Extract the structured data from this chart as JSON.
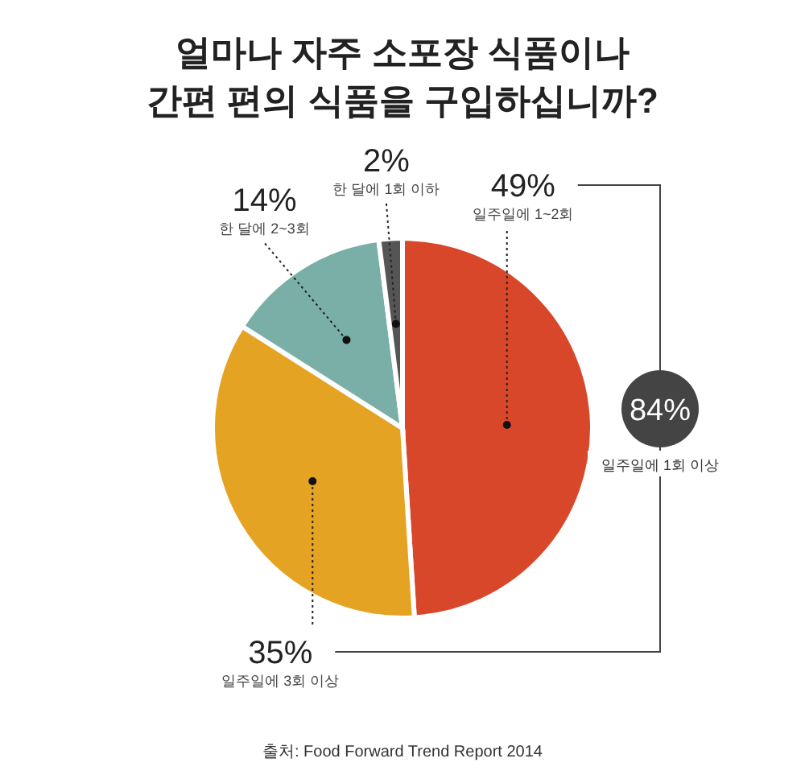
{
  "chart_data": {
    "type": "pie",
    "title": "얼마나 자주 소포장 식품이나\n간편 편의 식품을 구입하십니까?",
    "categories": [
      "일주일에 1~2회",
      "일주일에 3회 이상",
      "한 달에 2~3회",
      "한 달에 1회 이하"
    ],
    "values": [
      49,
      35,
      14,
      2
    ],
    "colors": [
      "#d9472b",
      "#e5a323",
      "#7aafa7",
      "#555555"
    ],
    "value_labels": [
      "49%",
      "35%",
      "14%",
      "2%"
    ],
    "annotations": [
      "84%",
      "일주일에 1회 이상",
      "출처: Food Forward Trend Report 2014"
    ]
  }
}
